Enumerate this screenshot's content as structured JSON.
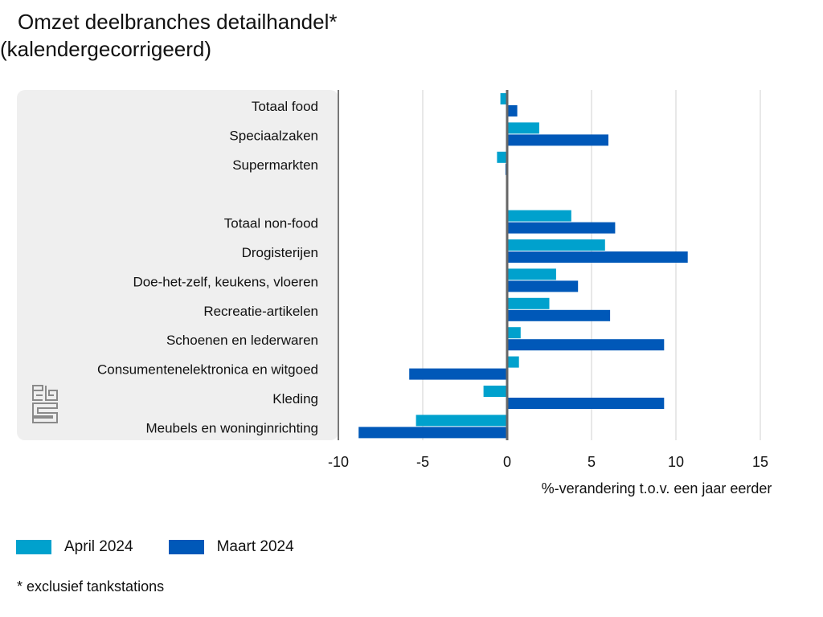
{
  "title_line1": "Omzet deelbranches detailhandel*",
  "title_line2": "(kalendergecorrigeerd)",
  "footnote": "* exclusief tankstations",
  "logo_icon": "cbs-logo-icon",
  "colors": {
    "april": "#00a1cd",
    "maart": "#0058b8",
    "zero_line": "#666666",
    "grid": "#d9d9d9",
    "panel": "#efefef"
  },
  "chart_data": {
    "type": "bar",
    "orientation": "horizontal",
    "title": "Omzet deelbranches detailhandel* (kalendergecorrigeerd)",
    "xlabel": "%-verandering t.o.v. een jaar eerder",
    "ylabel": "",
    "xlim": [
      -10,
      15
    ],
    "xticks": [
      "-10",
      "-5",
      "0",
      "5",
      "10",
      "15"
    ],
    "xtick_values": [
      -10,
      -5,
      0,
      5,
      10,
      15
    ],
    "grid": true,
    "legend_position": "bottom-left",
    "categories": [
      "Totaal food",
      "Speciaalzaken",
      "Supermarkten",
      "",
      "Totaal non-food",
      "Drogisterijen",
      "Doe-het-zelf, keukens, vloeren",
      "Recreatie-artikelen",
      "Schoenen en lederwaren",
      "Consumentenelektronica en witgoed",
      "Kleding",
      "Meubels en woninginrichting"
    ],
    "series": [
      {
        "name": "April 2024",
        "color": "#00a1cd",
        "values": [
          -0.4,
          1.9,
          -0.6,
          null,
          3.8,
          5.8,
          2.9,
          2.5,
          0.8,
          0.7,
          -1.4,
          -5.4
        ]
      },
      {
        "name": "Maart 2024",
        "color": "#0058b8",
        "values": [
          0.6,
          6.0,
          -0.1,
          null,
          6.4,
          10.7,
          4.2,
          6.1,
          9.3,
          -5.8,
          9.3,
          -8.8
        ]
      }
    ]
  }
}
